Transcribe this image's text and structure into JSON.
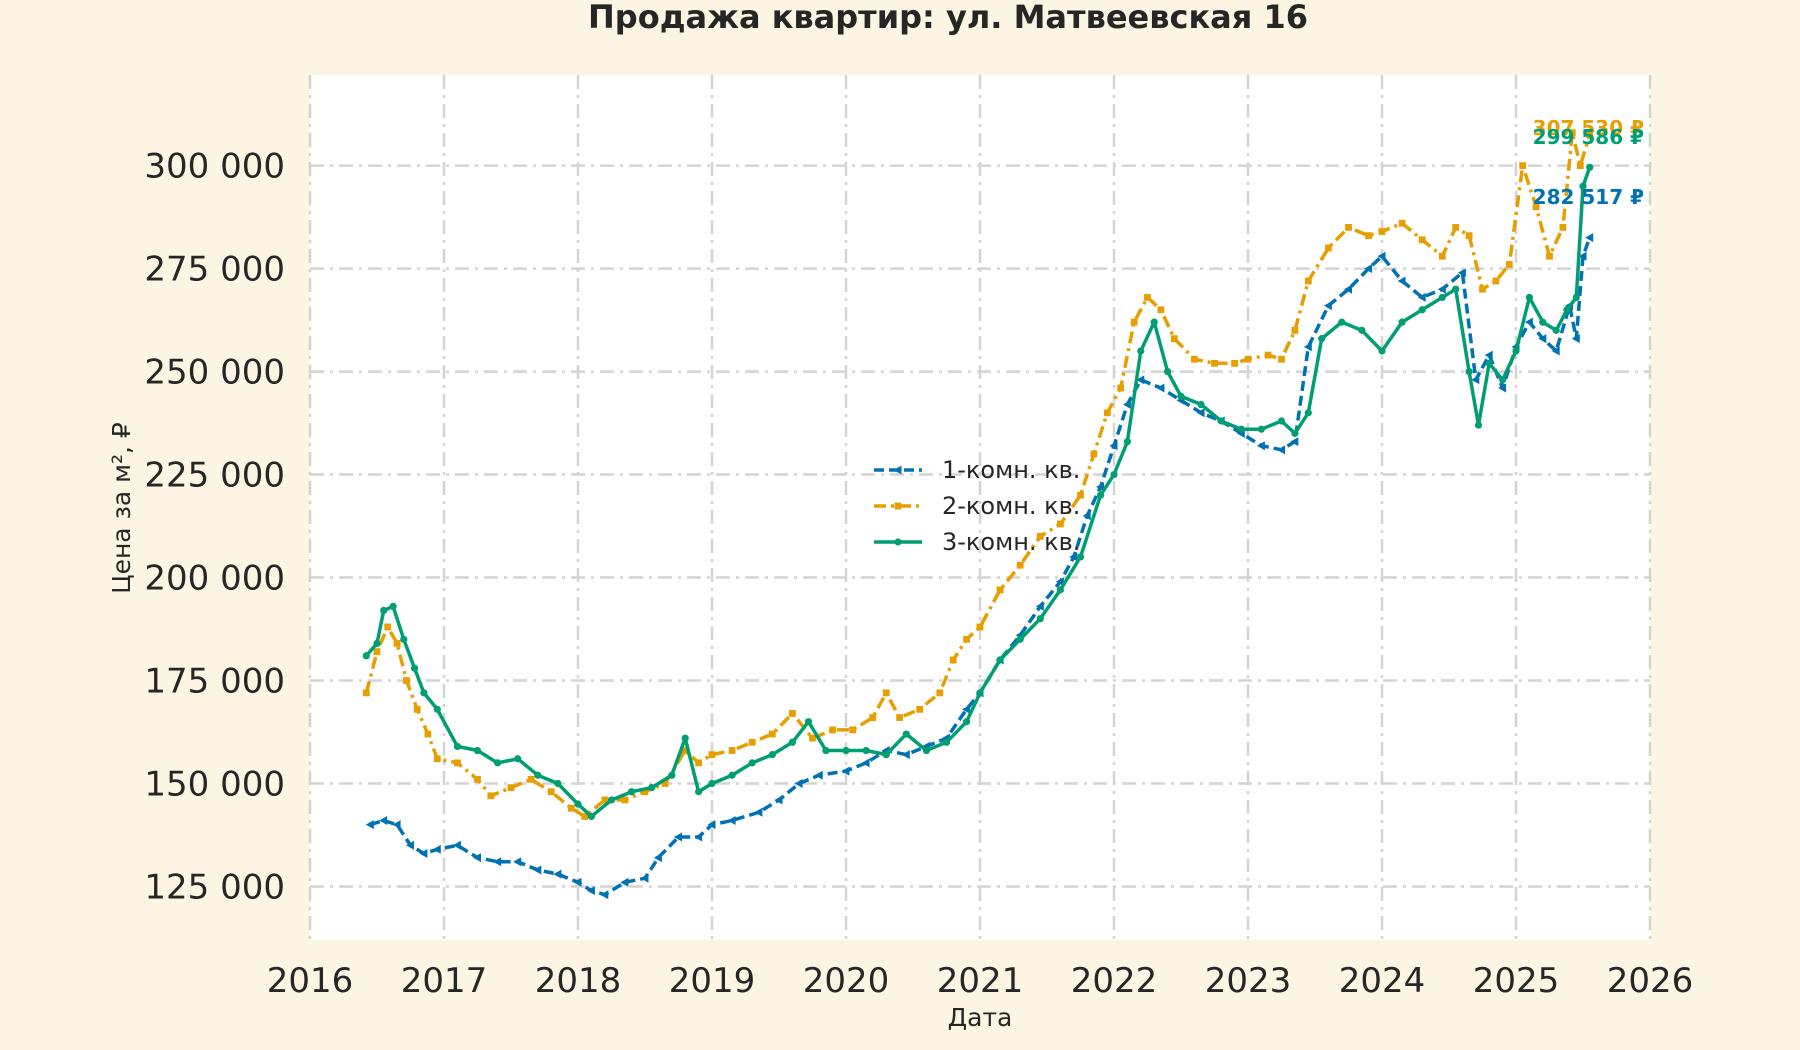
{
  "chart_data": {
    "type": "line",
    "title": "Продажа квартир: ул. Матвеевская 16",
    "xlabel": "Дата",
    "ylabel": "Цена за м², ₽",
    "xlim": [
      2016.0,
      2026.0
    ],
    "ylim": [
      112000,
      322000
    ],
    "x_ticks": [
      2016,
      2017,
      2018,
      2019,
      2020,
      2021,
      2022,
      2023,
      2024,
      2025,
      2026
    ],
    "x_tick_labels": [
      "2016",
      "2017",
      "2018",
      "2019",
      "2020",
      "2021",
      "2022",
      "2023",
      "2024",
      "2025",
      "2026"
    ],
    "y_ticks": [
      125000,
      150000,
      175000,
      200000,
      225000,
      250000,
      275000,
      300000
    ],
    "y_tick_labels": [
      "125 000",
      "150 000",
      "175 000",
      "200 000",
      "225 000",
      "250 000",
      "275 000",
      "300 000"
    ],
    "grid": true,
    "legend_position": "center",
    "series": [
      {
        "name": "1-комн. кв.",
        "color": "#0072b2",
        "line_style": "dashed",
        "marker": "triangle-left",
        "end_label": "282 517 ₽",
        "x": [
          2016.45,
          2016.55,
          2016.65,
          2016.75,
          2016.85,
          2016.95,
          2017.1,
          2017.25,
          2017.4,
          2017.55,
          2017.7,
          2017.85,
          2018.0,
          2018.1,
          2018.2,
          2018.35,
          2018.5,
          2018.6,
          2018.75,
          2018.9,
          2019.0,
          2019.15,
          2019.35,
          2019.5,
          2019.65,
          2019.8,
          2020.0,
          2020.15,
          2020.3,
          2020.45,
          2020.6,
          2020.75,
          2020.9,
          2021.0,
          2021.15,
          2021.3,
          2021.45,
          2021.6,
          2021.7,
          2021.8,
          2021.9,
          2022.0,
          2022.1,
          2022.2,
          2022.35,
          2022.5,
          2022.65,
          2022.8,
          2022.95,
          2023.1,
          2023.25,
          2023.35,
          2023.45,
          2023.6,
          2023.75,
          2023.9,
          2024.0,
          2024.15,
          2024.3,
          2024.45,
          2024.6,
          2024.7,
          2024.8,
          2024.9,
          2025.0,
          2025.1,
          2025.2,
          2025.3,
          2025.4,
          2025.45,
          2025.5,
          2025.55
        ],
        "y": [
          140000,
          141000,
          140000,
          135000,
          133000,
          134000,
          135000,
          132000,
          131000,
          131000,
          129000,
          128000,
          126000,
          124000,
          123000,
          126000,
          127000,
          132000,
          137000,
          137000,
          140000,
          141000,
          143000,
          146000,
          150000,
          152000,
          153000,
          155000,
          158000,
          157000,
          159000,
          161000,
          168000,
          172000,
          180000,
          186000,
          193000,
          199000,
          205000,
          215000,
          222000,
          232000,
          242000,
          248000,
          246000,
          243000,
          240000,
          238000,
          235000,
          232000,
          231000,
          233000,
          256000,
          266000,
          270000,
          275000,
          278000,
          272000,
          268000,
          270000,
          274000,
          248000,
          254000,
          246000,
          256000,
          262000,
          258000,
          255000,
          266000,
          258000,
          278000,
          282517
        ]
      },
      {
        "name": "2-комн. кв.",
        "color": "#e69f00",
        "line_style": "dashdot",
        "marker": "square",
        "end_label": "307 530 ₽",
        "x": [
          2016.42,
          2016.5,
          2016.58,
          2016.65,
          2016.72,
          2016.8,
          2016.88,
          2016.95,
          2017.1,
          2017.25,
          2017.35,
          2017.5,
          2017.65,
          2017.8,
          2017.95,
          2018.05,
          2018.2,
          2018.35,
          2018.5,
          2018.65,
          2018.8,
          2018.9,
          2019.0,
          2019.15,
          2019.3,
          2019.45,
          2019.6,
          2019.75,
          2019.9,
          2020.05,
          2020.2,
          2020.3,
          2020.4,
          2020.55,
          2020.7,
          2020.8,
          2020.9,
          2021.0,
          2021.15,
          2021.3,
          2021.45,
          2021.6,
          2021.75,
          2021.85,
          2021.95,
          2022.05,
          2022.15,
          2022.25,
          2022.35,
          2022.45,
          2022.6,
          2022.75,
          2022.9,
          2023.0,
          2023.15,
          2023.25,
          2023.35,
          2023.45,
          2023.6,
          2023.75,
          2023.9,
          2024.0,
          2024.15,
          2024.3,
          2024.45,
          2024.55,
          2024.65,
          2024.75,
          2024.85,
          2024.95,
          2025.05,
          2025.15,
          2025.25,
          2025.35,
          2025.42,
          2025.48,
          2025.55
        ],
        "y": [
          172000,
          182000,
          188000,
          184000,
          175000,
          168000,
          162000,
          156000,
          155000,
          151000,
          147000,
          149000,
          151000,
          148000,
          144000,
          142000,
          146000,
          146000,
          148000,
          150000,
          158000,
          155000,
          157000,
          158000,
          160000,
          162000,
          167000,
          161000,
          163000,
          163000,
          166000,
          172000,
          166000,
          168000,
          172000,
          180000,
          185000,
          188000,
          197000,
          203000,
          210000,
          213000,
          220000,
          230000,
          240000,
          246000,
          262000,
          268000,
          265000,
          258000,
          253000,
          252000,
          252000,
          253000,
          254000,
          253000,
          260000,
          272000,
          280000,
          285000,
          283000,
          284000,
          286000,
          282000,
          278000,
          285000,
          283000,
          270000,
          272000,
          276000,
          300000,
          290000,
          278000,
          285000,
          308000,
          300000,
          307530
        ]
      },
      {
        "name": "3-комн. кв.",
        "color": "#009e73",
        "line_style": "solid",
        "marker": "circle",
        "end_label": "299 586 ₽",
        "x": [
          2016.42,
          2016.5,
          2016.55,
          2016.62,
          2016.7,
          2016.78,
          2016.85,
          2016.95,
          2017.1,
          2017.25,
          2017.4,
          2017.55,
          2017.7,
          2017.85,
          2018.0,
          2018.1,
          2018.25,
          2018.4,
          2018.55,
          2018.7,
          2018.8,
          2018.9,
          2019.0,
          2019.15,
          2019.3,
          2019.45,
          2019.6,
          2019.72,
          2019.85,
          2020.0,
          2020.15,
          2020.3,
          2020.45,
          2020.6,
          2020.75,
          2020.9,
          2021.0,
          2021.15,
          2021.3,
          2021.45,
          2021.6,
          2021.75,
          2021.9,
          2022.0,
          2022.1,
          2022.2,
          2022.3,
          2022.4,
          2022.5,
          2022.65,
          2022.8,
          2022.95,
          2023.1,
          2023.25,
          2023.35,
          2023.45,
          2023.55,
          2023.7,
          2023.85,
          2024.0,
          2024.15,
          2024.3,
          2024.45,
          2024.55,
          2024.65,
          2024.72,
          2024.8,
          2024.9,
          2025.0,
          2025.1,
          2025.2,
          2025.3,
          2025.38,
          2025.45,
          2025.5,
          2025.55
        ],
        "y": [
          181000,
          184000,
          192000,
          193000,
          185000,
          178000,
          172000,
          168000,
          159000,
          158000,
          155000,
          156000,
          152000,
          150000,
          145000,
          142000,
          146000,
          148000,
          149000,
          152000,
          161000,
          148000,
          150000,
          152000,
          155000,
          157000,
          160000,
          165000,
          158000,
          158000,
          158000,
          157000,
          162000,
          158000,
          160000,
          165000,
          172000,
          180000,
          185000,
          190000,
          197000,
          205000,
          220000,
          225000,
          233000,
          255000,
          262000,
          250000,
          244000,
          242000,
          238000,
          236000,
          236000,
          238000,
          235000,
          240000,
          258000,
          262000,
          260000,
          255000,
          262000,
          265000,
          268000,
          270000,
          250000,
          237000,
          252000,
          248000,
          255000,
          268000,
          262000,
          260000,
          265000,
          268000,
          295000,
          299586
        ]
      }
    ]
  }
}
